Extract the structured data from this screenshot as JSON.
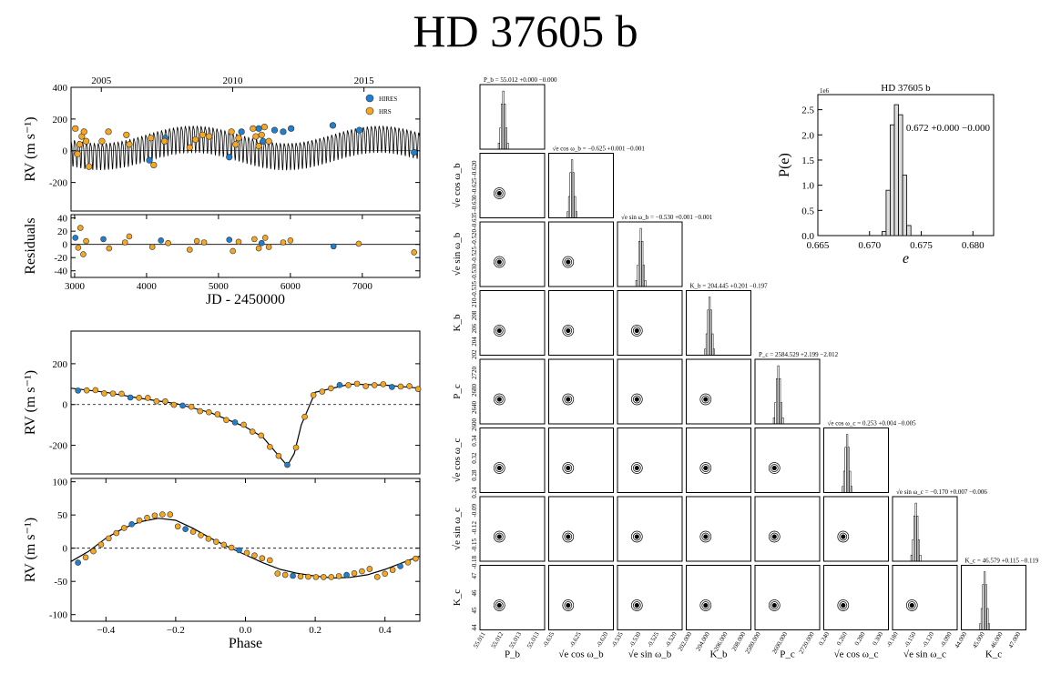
{
  "title": "HD 37605 b",
  "chart_data": [
    {
      "type": "scatter",
      "id": "rv-timeseries",
      "xlabel": "JD - 2450000",
      "ylabel": "RV (m s⁻¹)",
      "xlim": [
        2950,
        7800
      ],
      "ylim": [
        -380,
        400
      ],
      "xticks": [
        3000,
        4000,
        5000,
        6000,
        7000
      ],
      "yticks": [
        -200,
        0,
        200,
        400
      ],
      "top_axis_ticks": [
        "2005",
        "2010",
        "2015"
      ],
      "top_axis_jd": [
        3371,
        5197,
        7023
      ],
      "legend": [
        "HIRES",
        "HRS"
      ],
      "legend_position": "top-right",
      "series": [
        {
          "name": "HIRES",
          "color": "#1f7fd0",
          "x": [
            4040,
            4260,
            5150,
            5320,
            5560,
            5620,
            5780,
            5900,
            6010,
            6590,
            6960,
            7720
          ],
          "y": [
            -60,
            80,
            -40,
            120,
            140,
            60,
            130,
            120,
            140,
            160,
            130,
            -10
          ]
        },
        {
          "name": "HRS",
          "color": "#f5a623",
          "x": [
            3010,
            3040,
            3070,
            3100,
            3130,
            3160,
            3200,
            3380,
            3470,
            3720,
            3760,
            4060,
            4100,
            4250,
            4600,
            4680,
            4780,
            4870,
            5180,
            5240,
            5280,
            5480,
            5520,
            5560,
            5600,
            5640,
            5700
          ],
          "y": [
            140,
            -20,
            40,
            90,
            120,
            60,
            -100,
            60,
            120,
            100,
            40,
            80,
            -90,
            60,
            20,
            70,
            100,
            90,
            120,
            40,
            80,
            140,
            90,
            30,
            100,
            150,
            60
          ]
        }
      ],
      "model": "two-planet Keplerian (P_b = 55.012 d, P_c = 2584.529 d)"
    },
    {
      "type": "scatter",
      "id": "residuals",
      "ylabel": "Residuals",
      "xlim": [
        2950,
        7800
      ],
      "ylim": [
        -50,
        45
      ],
      "yticks": [
        -40,
        -20,
        0,
        20,
        40
      ]
    },
    {
      "type": "scatter",
      "id": "phase-b",
      "ylabel": "RV (m s⁻¹)",
      "xlim": [
        -0.5,
        0.5
      ],
      "ylim": [
        -340,
        360
      ],
      "yticks": [
        -200,
        0,
        200
      ],
      "curve_x": [
        -0.5,
        -0.4,
        -0.3,
        -0.2,
        -0.1,
        0.0,
        0.05,
        0.1,
        0.12,
        0.14,
        0.16,
        0.2,
        0.3,
        0.4,
        0.5
      ],
      "curve_y": [
        80,
        60,
        30,
        5,
        -40,
        -110,
        -160,
        -260,
        -300,
        -240,
        -100,
        60,
        100,
        95,
        80
      ]
    },
    {
      "type": "scatter",
      "id": "phase-c",
      "xlabel": "Phase",
      "ylabel": "RV (m s⁻¹)",
      "xlim": [
        -0.5,
        0.5
      ],
      "ylim": [
        -110,
        105
      ],
      "xticks": [
        -0.4,
        -0.2,
        0.0,
        0.2,
        0.4
      ],
      "yticks": [
        -100,
        -50,
        0,
        50,
        100
      ],
      "curve_x": [
        -0.5,
        -0.45,
        -0.4,
        -0.35,
        -0.3,
        -0.25,
        -0.2,
        -0.15,
        -0.1,
        -0.05,
        0.0,
        0.05,
        0.1,
        0.15,
        0.2,
        0.25,
        0.3,
        0.35,
        0.4,
        0.45,
        0.5
      ],
      "curve_y": [
        -20,
        -5,
        15,
        30,
        40,
        45,
        42,
        30,
        15,
        2,
        -10,
        -22,
        -32,
        -38,
        -42,
        -45,
        -44,
        -40,
        -32,
        -22,
        -12
      ]
    },
    {
      "type": "histogram",
      "id": "eccentricity",
      "title": "HD 37605 b",
      "xlabel": "e",
      "ylabel": "P(e)",
      "annotation": "e = 0.672 +0.000 −0.000",
      "offset_label": "1e6",
      "xlim": [
        0.665,
        0.682
      ],
      "ylim": [
        0,
        2.8
      ],
      "xticks": [
        0.665,
        0.67,
        0.675,
        0.68
      ],
      "yticks": [
        0.0,
        0.5,
        1.0,
        1.5,
        2.0,
        2.5
      ],
      "bins": [
        0.6712,
        0.6716,
        0.672,
        0.6724,
        0.6728,
        0.6732,
        0.6736
      ],
      "counts": [
        0.08,
        0.9,
        2.2,
        2.6,
        2.4,
        1.2,
        0.2
      ]
    },
    {
      "type": "corner",
      "id": "posterior-corner",
      "parameters": [
        "P_b",
        "√e cos ω_b",
        "√e sin ω_b",
        "K_b",
        "P_c",
        "√e cos ω_c",
        "√e sin ω_c",
        "K_c"
      ],
      "titles": [
        "P_b = 55.012 +0.000 −0.000",
        "√e cos ω_b = −0.625 +0.001 −0.001",
        "√e sin ω_b = −0.530 +0.001 −0.001",
        "K_b = 204.445 +0.201 −0.197",
        "P_c = 2584.529 +2.199 −2.012",
        "√e cos ω_c = 0.253 +0.004 −0.005",
        "√e sin ω_c = −0.170 +0.007 −0.006",
        "K_c = 46.579 +0.115 −0.119"
      ],
      "xlabels": [
        "P_b",
        "√e cos ω_b",
        "√e sin ω_b",
        "K_b",
        "P_c",
        "√e cos ω_c",
        "√e sin ω_c",
        "K_c"
      ],
      "ylabels": [
        "√e cos ω_b",
        "√e sin ω_b",
        "K_b",
        "P_c",
        "√e cos ω_c",
        "√e sin ω_c",
        "K_c"
      ],
      "xticks": [
        [
          "55.011",
          "55.012",
          "55.013",
          "55.013"
        ],
        [
          "-0.635",
          "-0.625",
          "-0.620"
        ],
        [
          "-0.535",
          "-0.530",
          "-0.525",
          "-0.520"
        ],
        [
          "202.000",
          "204.000",
          "206.000",
          "208.000"
        ],
        [
          "2580.000",
          "2600.000",
          "2720.000"
        ],
        [
          "0.240",
          "0.260",
          "0.280",
          "0.300"
        ],
        [
          "-0.180",
          "-0.150",
          "-0.120",
          "-0.090"
        ],
        [
          "44.000",
          "45.000",
          "46.000",
          "47.000"
        ]
      ],
      "yticks": [
        [
          "-0.620",
          "-0.625",
          "-0.630",
          "-0.635"
        ],
        [
          "-0.520",
          "-0.525",
          "-0.530",
          "-0.535"
        ],
        [
          "210",
          "208",
          "206",
          "204",
          "202"
        ],
        [
          "2720",
          "2680",
          "2640",
          "2600"
        ],
        [
          "0.34",
          "0.32",
          "0.28",
          "0.24"
        ],
        [
          "-0.09",
          "-0.12",
          "-0.15",
          "-0.18"
        ],
        [
          "47",
          "46",
          "45",
          "44"
        ]
      ]
    }
  ]
}
